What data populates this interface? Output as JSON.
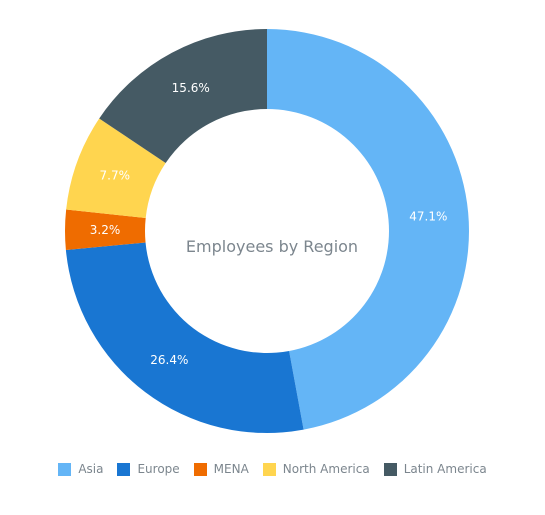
{
  "chart_data": {
    "type": "pie",
    "variant": "donut",
    "title": "Employees by Region",
    "slices": [
      {
        "name": "Asia",
        "value": 47.1,
        "label": "47.1%",
        "color": "#64b5f6"
      },
      {
        "name": "Europe",
        "value": 26.4,
        "label": "26.4%",
        "color": "#1976d2"
      },
      {
        "name": "MENA",
        "value": 3.2,
        "label": "3.2%",
        "color": "#ef6c00"
      },
      {
        "name": "North America",
        "value": 7.7,
        "label": "7.7%",
        "color": "#ffd54f"
      },
      {
        "name": "Latin America",
        "value": 15.6,
        "label": "15.6%",
        "color": "#455a64"
      }
    ],
    "legend_position": "bottom"
  },
  "legend": {
    "items": [
      {
        "label": "Asia",
        "color": "#64b5f6"
      },
      {
        "label": "Europe",
        "color": "#1976d2"
      },
      {
        "label": "MENA",
        "color": "#ef6c00"
      },
      {
        "label": "North America",
        "color": "#ffd54f"
      },
      {
        "label": "Latin America",
        "color": "#455a64"
      }
    ]
  }
}
